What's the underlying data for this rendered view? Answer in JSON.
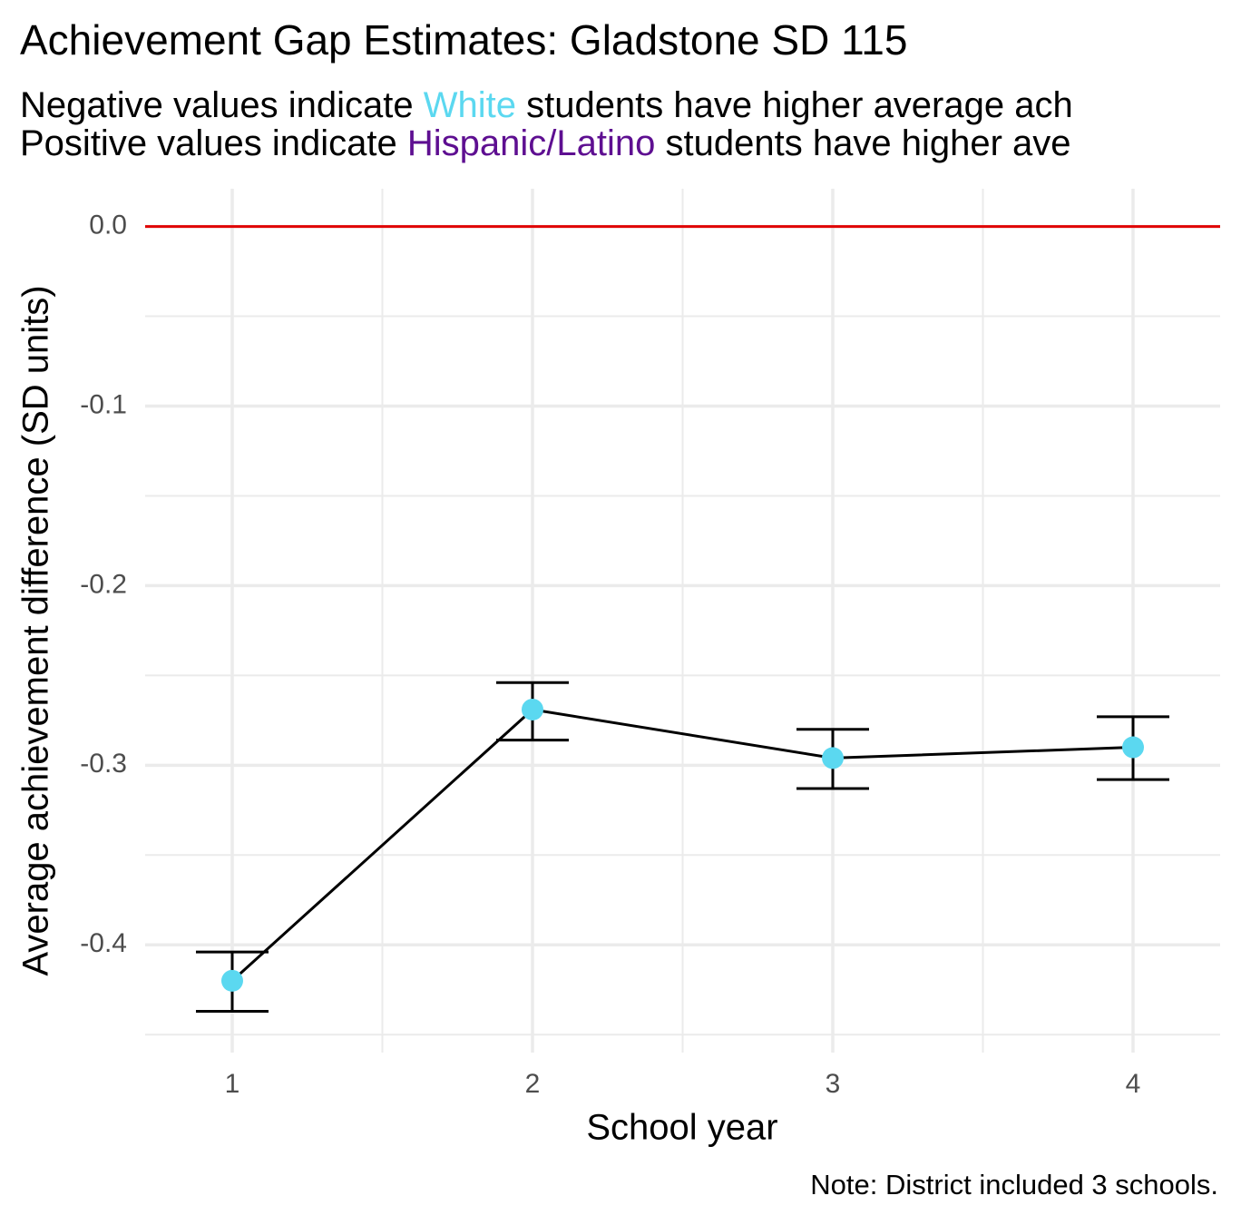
{
  "chart_data": {
    "type": "errorbar-line",
    "title": "Achievement Gap Estimates: Gladstone SD 115",
    "subtitle": [
      [
        {
          "text": "Negative values indicate "
        },
        {
          "text": "White",
          "color": "#5bd8f0"
        },
        {
          "text": " students have higher average ach"
        }
      ],
      [
        {
          "text": "Positive values indicate "
        },
        {
          "text": "Hispanic/Latino",
          "color": "#5e0f91"
        },
        {
          "text": " students have higher ave"
        }
      ]
    ],
    "x_label": "School year",
    "y_label": "Average achievement difference (SD units)",
    "caption": "Note: District included 3 schools.",
    "x": [
      1,
      2,
      3,
      4
    ],
    "values": [
      -0.42,
      -0.269,
      -0.296,
      -0.29
    ],
    "lower": [
      -0.437,
      -0.286,
      -0.313,
      -0.308
    ],
    "upper": [
      -0.404,
      -0.254,
      -0.28,
      -0.273
    ],
    "point_color": "#5bd8f0",
    "line_color": "#000000",
    "reference_line": {
      "value": 0,
      "color": "#e00000"
    },
    "xlim": [
      0.71,
      4.29
    ],
    "xticks": [
      1,
      2,
      3,
      4
    ],
    "ylim": [
      -0.46,
      0.021
    ],
    "yticks": [
      {
        "value": -0.4,
        "label": "-0.4"
      },
      {
        "value": -0.3,
        "label": "-0.3"
      },
      {
        "value": -0.2,
        "label": "-0.2"
      },
      {
        "value": -0.1,
        "label": "-0.1"
      },
      {
        "value": 0,
        "label": "0.0"
      }
    ],
    "grid": true
  }
}
